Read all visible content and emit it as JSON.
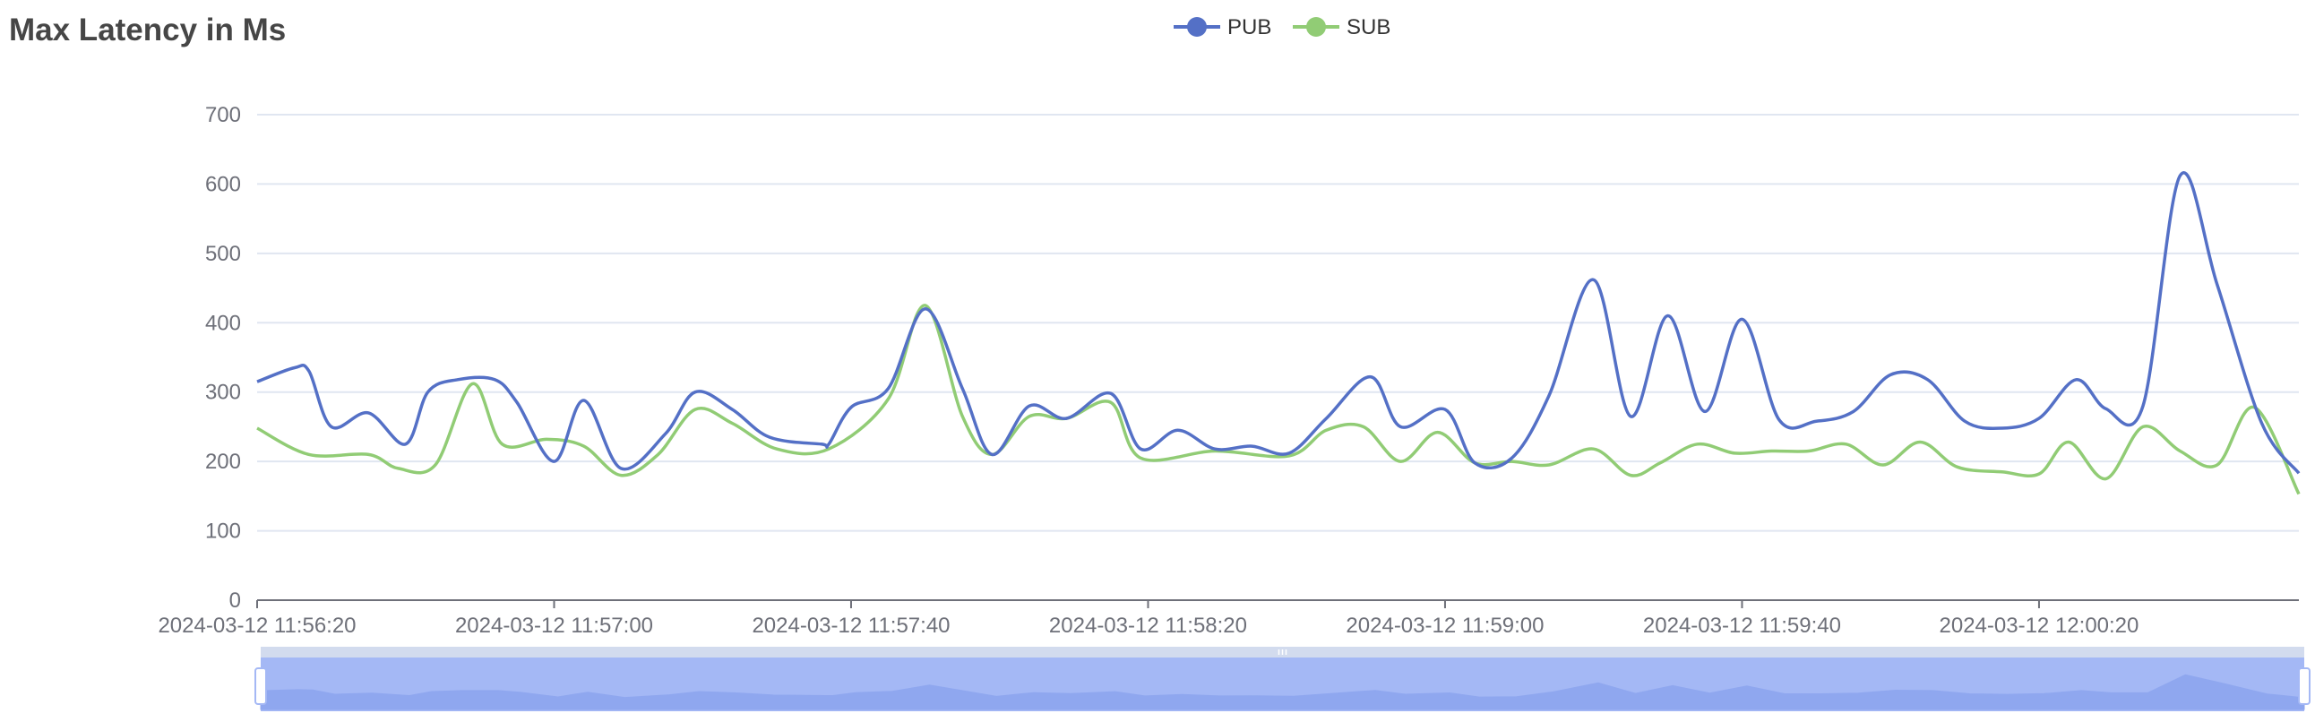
{
  "chart_data": {
    "type": "line",
    "title": "Max Latency in Ms",
    "legend": {
      "position": "top-center"
    },
    "grid": true,
    "ylim": [
      0,
      700
    ],
    "y_ticks": [
      "0",
      "100",
      "200",
      "300",
      "400",
      "500",
      "600",
      "700"
    ],
    "x_ticks": [
      "2024-03-12 11:56:20",
      "2024-03-12 11:57:00",
      "2024-03-12 11:57:40",
      "2024-03-12 11:58:20",
      "2024-03-12 11:59:00",
      "2024-03-12 11:59:40",
      "2024-03-12 12:00:20"
    ],
    "x_start": "2024-03-12 11:56:20",
    "x_end": "2024-03-12 12:00:55",
    "series": [
      {
        "name": "PUB",
        "color": "#5470c6",
        "points": [
          [
            "11:56:20",
            315
          ],
          [
            "11:56:25",
            335
          ],
          [
            "11:56:27",
            330
          ],
          [
            "11:56:30",
            250
          ],
          [
            "11:56:35",
            270
          ],
          [
            "11:56:40",
            225
          ],
          [
            "11:56:43",
            300
          ],
          [
            "11:56:47",
            318
          ],
          [
            "11:56:52",
            318
          ],
          [
            "11:56:55",
            285
          ],
          [
            "11:57:00",
            200
          ],
          [
            "11:57:04",
            288
          ],
          [
            "11:57:09",
            190
          ],
          [
            "11:57:15",
            240
          ],
          [
            "11:57:19",
            300
          ],
          [
            "11:57:24",
            275
          ],
          [
            "11:57:29",
            235
          ],
          [
            "11:57:36",
            225
          ],
          [
            "11:57:37",
            225
          ],
          [
            "11:57:40",
            278
          ],
          [
            "11:57:45",
            305
          ],
          [
            "11:57:50",
            420
          ],
          [
            "11:57:55",
            305
          ],
          [
            "11:57:59",
            210
          ],
          [
            "11:58:04",
            280
          ],
          [
            "11:58:09",
            262
          ],
          [
            "11:58:15",
            298
          ],
          [
            "11:58:19",
            218
          ],
          [
            "11:58:24",
            245
          ],
          [
            "11:58:29",
            218
          ],
          [
            "11:58:34",
            222
          ],
          [
            "11:58:39",
            212
          ],
          [
            "11:58:44",
            262
          ],
          [
            "11:58:50",
            322
          ],
          [
            "11:58:54",
            250
          ],
          [
            "11:59:00",
            275
          ],
          [
            "11:59:04",
            198
          ],
          [
            "11:59:09",
            205
          ],
          [
            "11:59:14",
            295
          ],
          [
            "11:59:20",
            462
          ],
          [
            "11:59:25",
            265
          ],
          [
            "11:59:30",
            410
          ],
          [
            "11:59:35",
            272
          ],
          [
            "11:59:40",
            405
          ],
          [
            "11:59:45",
            260
          ],
          [
            "11:59:50",
            258
          ],
          [
            "11:59:55",
            272
          ],
          [
            "12:00:00",
            325
          ],
          [
            "12:00:05",
            318
          ],
          [
            "12:00:10",
            258
          ],
          [
            "12:00:15",
            248
          ],
          [
            "12:00:20",
            262
          ],
          [
            "12:00:25",
            318
          ],
          [
            "12:00:29",
            276
          ],
          [
            "12:00:34",
            280
          ],
          [
            "12:00:39",
            612
          ],
          [
            "12:00:44",
            455
          ],
          [
            "12:00:50",
            255
          ],
          [
            "12:00:55",
            183
          ]
        ]
      },
      {
        "name": "SUB",
        "color": "#91cc75",
        "points": [
          [
            "11:56:20",
            248
          ],
          [
            "11:56:27",
            210
          ],
          [
            "11:56:35",
            210
          ],
          [
            "11:56:39",
            190
          ],
          [
            "11:56:44",
            195
          ],
          [
            "11:56:49",
            312
          ],
          [
            "11:56:53",
            225
          ],
          [
            "11:56:59",
            232
          ],
          [
            "11:57:04",
            222
          ],
          [
            "11:57:09",
            180
          ],
          [
            "11:57:14",
            210
          ],
          [
            "11:57:19",
            275
          ],
          [
            "11:57:24",
            255
          ],
          [
            "11:57:30",
            218
          ],
          [
            "11:57:37",
            218
          ],
          [
            "11:57:45",
            290
          ],
          [
            "11:57:50",
            425
          ],
          [
            "11:57:55",
            265
          ],
          [
            "11:57:59",
            210
          ],
          [
            "11:58:04",
            265
          ],
          [
            "11:58:09",
            262
          ],
          [
            "11:58:15",
            285
          ],
          [
            "11:58:19",
            205
          ],
          [
            "11:58:29",
            215
          ],
          [
            "11:58:39",
            208
          ],
          [
            "11:58:44",
            245
          ],
          [
            "11:58:49",
            250
          ],
          [
            "11:58:54",
            200
          ],
          [
            "11:58:59",
            242
          ],
          [
            "11:59:04",
            198
          ],
          [
            "11:59:09",
            200
          ],
          [
            "11:59:14",
            195
          ],
          [
            "11:59:20",
            218
          ],
          [
            "11:59:25",
            180
          ],
          [
            "11:59:29",
            198
          ],
          [
            "11:59:34",
            225
          ],
          [
            "11:59:39",
            212
          ],
          [
            "11:59:44",
            215
          ],
          [
            "11:59:49",
            215
          ],
          [
            "11:59:54",
            225
          ],
          [
            "11:59:59",
            195
          ],
          [
            "12:00:04",
            228
          ],
          [
            "12:00:09",
            192
          ],
          [
            "12:00:15",
            185
          ],
          [
            "12:00:20",
            182
          ],
          [
            "12:00:24",
            228
          ],
          [
            "12:00:29",
            175
          ],
          [
            "12:00:34",
            250
          ],
          [
            "12:00:39",
            215
          ],
          [
            "12:00:44",
            195
          ],
          [
            "12:00:49",
            278
          ],
          [
            "12:00:55",
            153
          ]
        ]
      }
    ]
  },
  "slider": {
    "start_pct": 0,
    "end_pct": 100
  }
}
